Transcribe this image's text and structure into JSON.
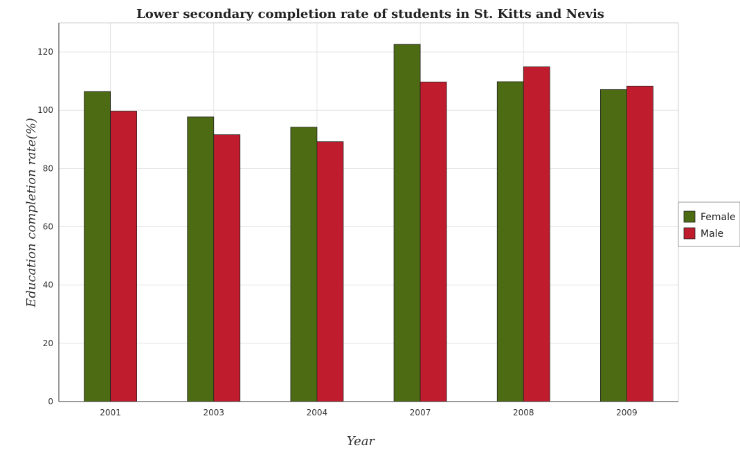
{
  "chart_data": {
    "type": "bar",
    "title": "Lower secondary completion rate of students in St. Kitts and Nevis",
    "xlabel": "Year",
    "ylabel": "Education completion rate(%)",
    "categories": [
      "2001",
      "2003",
      "2004",
      "2007",
      "2008",
      "2009"
    ],
    "series": [
      {
        "name": "Female",
        "color": "#4d6b12",
        "values": [
          106.4,
          97.7,
          94.2,
          122.6,
          109.8,
          107.1
        ]
      },
      {
        "name": "Male",
        "color": "#bf1d2d",
        "values": [
          99.7,
          91.6,
          89.2,
          109.7,
          114.9,
          108.3
        ]
      }
    ],
    "ylim": [
      0,
      130
    ],
    "yticks": [
      0,
      20,
      40,
      60,
      80,
      100,
      120
    ],
    "grid": true,
    "legend_position": "right"
  }
}
